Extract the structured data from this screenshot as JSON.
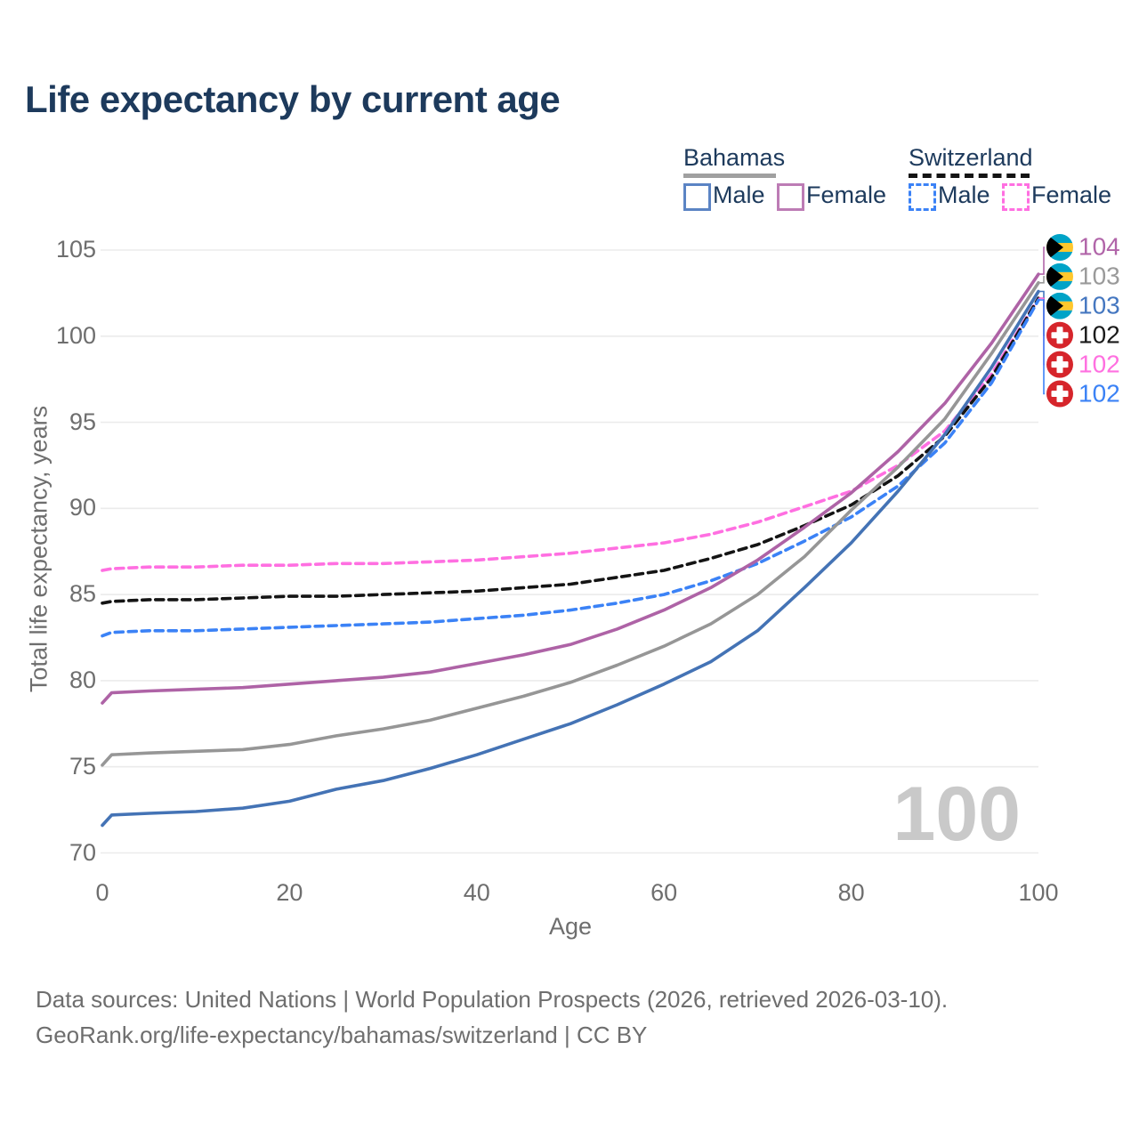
{
  "title": "Life expectancy by current age",
  "watermark_age": "100",
  "legend": {
    "bahamas": {
      "label": "Bahamas",
      "male": "Male",
      "female": "Female",
      "line_color": "#a0a0a0",
      "male_box_color": "#5b84c4",
      "female_box_color": "#bd7cb5",
      "style": "solid"
    },
    "switzerland": {
      "label": "Switzerland",
      "male": "Male",
      "female": "Female",
      "line_color": "#141414",
      "male_box_color": "#3b82f6",
      "female_box_color": "#ff6fe1",
      "style": "dashed"
    }
  },
  "footer": {
    "line1": "Data sources: United Nations | World Population Prospects (2026, retrieved 2026-03-10).",
    "line2": "GeoRank.org/life-expectancy/bahamas/switzerland | CC BY"
  },
  "chart_data": {
    "type": "line",
    "title": "Life expectancy by current age",
    "xlabel": "Age",
    "ylabel": "Total life expectancy, years",
    "xlim": [
      0,
      100
    ],
    "ylim": [
      70,
      105
    ],
    "x_ticks": [
      0,
      20,
      40,
      60,
      80,
      100
    ],
    "y_ticks": [
      70,
      75,
      80,
      85,
      90,
      95,
      100,
      105
    ],
    "grid": true,
    "legend_position": "top-right",
    "ages": [
      0,
      1,
      5,
      10,
      15,
      20,
      25,
      30,
      35,
      40,
      45,
      50,
      55,
      60,
      65,
      70,
      75,
      80,
      85,
      90,
      95,
      100
    ],
    "series": [
      {
        "id": "bahamas_male",
        "name": "Bahamas Male",
        "country": "Bahamas",
        "sex": "Male",
        "style": "solid",
        "color": "#4473b5",
        "values": [
          71.6,
          72.2,
          72.3,
          72.4,
          72.6,
          73.0,
          73.7,
          74.2,
          74.9,
          75.7,
          76.6,
          77.5,
          78.6,
          79.8,
          81.1,
          82.9,
          85.4,
          88.0,
          91.0,
          94.3,
          98.2,
          102.6
        ]
      },
      {
        "id": "bahamas_female",
        "name": "Bahamas Female",
        "country": "Bahamas",
        "sex": "Female",
        "style": "solid",
        "color": "#ae63a6",
        "values": [
          78.7,
          79.3,
          79.4,
          79.5,
          79.6,
          79.8,
          80.0,
          80.2,
          80.5,
          81.0,
          81.5,
          82.1,
          83.0,
          84.1,
          85.4,
          87.0,
          88.9,
          90.9,
          93.3,
          96.1,
          99.6,
          103.6
        ]
      },
      {
        "id": "bahamas_both",
        "name": "Bahamas",
        "country": "Bahamas",
        "sex": "Both",
        "style": "solid",
        "color": "#969696",
        "values": [
          75.1,
          75.7,
          75.8,
          75.9,
          76.0,
          76.3,
          76.8,
          77.2,
          77.7,
          78.4,
          79.1,
          79.9,
          80.9,
          82.0,
          83.3,
          85.0,
          87.2,
          89.9,
          92.4,
          95.2,
          99.0,
          103.1
        ]
      },
      {
        "id": "switzerland_male",
        "name": "Switzerland Male",
        "country": "Switzerland",
        "sex": "Male",
        "style": "dashed",
        "color": "#3b82f6",
        "values": [
          82.6,
          82.8,
          82.9,
          82.9,
          83.0,
          83.1,
          83.2,
          83.3,
          83.4,
          83.6,
          83.8,
          84.1,
          84.5,
          85.0,
          85.8,
          86.8,
          88.1,
          89.5,
          91.3,
          93.8,
          97.3,
          102.1
        ]
      },
      {
        "id": "switzerland_female",
        "name": "Switzerland Female",
        "country": "Switzerland",
        "sex": "Female",
        "style": "dashed",
        "color": "#ff6fe1",
        "values": [
          86.4,
          86.5,
          86.6,
          86.6,
          86.7,
          86.7,
          86.8,
          86.8,
          86.9,
          87.0,
          87.2,
          87.4,
          87.7,
          88.0,
          88.5,
          89.2,
          90.1,
          91.0,
          92.5,
          94.5,
          97.8,
          102.2
        ]
      },
      {
        "id": "switzerland_both",
        "name": "Switzerland",
        "country": "Switzerland",
        "sex": "Both",
        "style": "dashed",
        "color": "#141414",
        "values": [
          84.5,
          84.6,
          84.7,
          84.7,
          84.8,
          84.9,
          84.9,
          85.0,
          85.1,
          85.2,
          85.4,
          85.6,
          86.0,
          86.4,
          87.1,
          87.9,
          89.0,
          90.2,
          91.9,
          94.2,
          97.6,
          102.2
        ]
      }
    ]
  },
  "end_labels": [
    {
      "series": "bahamas_female",
      "flag": "bahamas",
      "value": "104",
      "color": "#b165a9"
    },
    {
      "series": "bahamas_both",
      "flag": "bahamas",
      "value": "103",
      "color": "#9a9a9a"
    },
    {
      "series": "bahamas_male",
      "flag": "bahamas",
      "value": "103",
      "color": "#4577c0"
    },
    {
      "series": "switzerland_both",
      "flag": "switzerland",
      "value": "102",
      "color": "#1a1a1a"
    },
    {
      "series": "switzerland_female",
      "flag": "switzerland",
      "value": "102",
      "color": "#ff70e0"
    },
    {
      "series": "switzerland_male",
      "flag": "switzerland",
      "value": "102",
      "color": "#3b82f6"
    }
  ],
  "flag_colors": {
    "bahamas_aqua": "#00a3c7",
    "bahamas_gold": "#ffc72c",
    "bahamas_black": "#000000",
    "swiss_red": "#d6252b",
    "swiss_white": "#ffffff"
  }
}
